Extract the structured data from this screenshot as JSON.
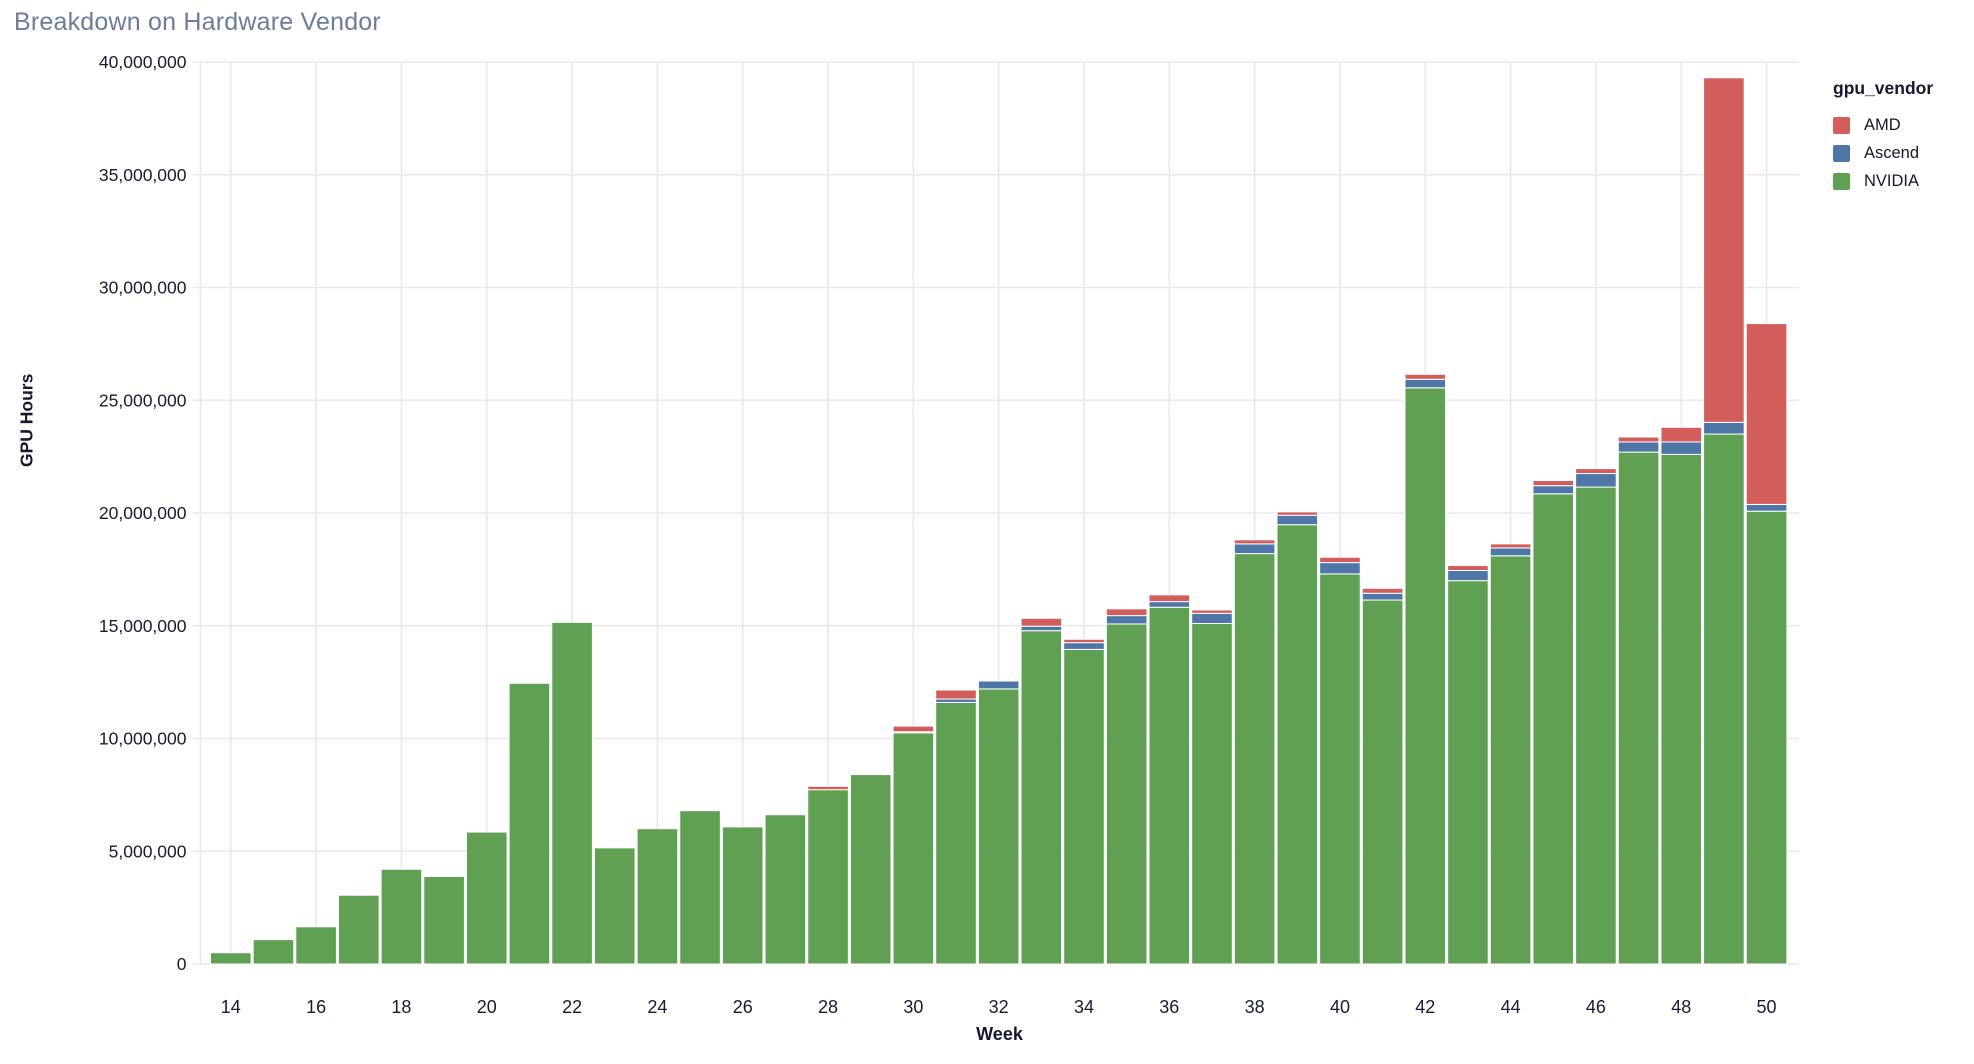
{
  "title": "Breakdown on Hardware Vendor",
  "legend": {
    "title": "gpu_vendor",
    "items": [
      {
        "label": "AMD",
        "color": "#d25d5a"
      },
      {
        "label": "Ascend",
        "color": "#4e77a7"
      },
      {
        "label": "NVIDIA",
        "color": "#5fa053"
      }
    ]
  },
  "colors": {
    "amd": "#d25d5a",
    "ascend": "#4e77a7",
    "nvidia": "#5fa053",
    "grid": "#e7e9f1",
    "axis_text": "#181b33",
    "title_text": "#6e7b98",
    "background": "#ffffff"
  },
  "chart_data": {
    "type": "bar",
    "stacked": true,
    "title": "Breakdown on Hardware Vendor",
    "xlabel": "Week",
    "ylabel": "GPU Hours",
    "x": [
      14,
      15,
      16,
      17,
      18,
      19,
      20,
      21,
      22,
      23,
      24,
      25,
      26,
      27,
      28,
      29,
      30,
      31,
      32,
      33,
      34,
      35,
      36,
      37,
      38,
      39,
      40,
      41,
      42,
      43,
      44,
      45,
      46,
      47,
      48,
      49,
      50
    ],
    "xticks": [
      14,
      16,
      18,
      20,
      22,
      24,
      26,
      28,
      30,
      32,
      34,
      36,
      38,
      40,
      42,
      44,
      46,
      48,
      50
    ],
    "xtick_labels": [
      "14",
      "16",
      "18",
      "20",
      "22",
      "24",
      "26",
      "28",
      "30",
      "32",
      "34",
      "36",
      "38",
      "40",
      "42",
      "44",
      "46",
      "48",
      "50"
    ],
    "ylim": [
      0,
      40000000
    ],
    "yticks": [
      0,
      5000000,
      10000000,
      15000000,
      20000000,
      25000000,
      30000000,
      35000000,
      40000000
    ],
    "ytick_labels": [
      "0",
      "5,000,000",
      "10,000,000",
      "15,000,000",
      "20,000,000",
      "25,000,000",
      "30,000,000",
      "35,000,000",
      "40,000,000"
    ],
    "grid": true,
    "legend_position": "right",
    "stack_order_bottom_to_top": [
      "NVIDIA",
      "Ascend",
      "AMD"
    ],
    "series": [
      {
        "name": "NVIDIA",
        "color": "#5fa053",
        "values": [
          500000,
          1080000,
          1650000,
          3050000,
          4200000,
          3880000,
          5850000,
          12450000,
          15150000,
          5150000,
          6000000,
          6800000,
          6080000,
          6620000,
          7730000,
          8400000,
          10250000,
          11600000,
          12200000,
          14780000,
          13950000,
          15080000,
          15820000,
          15100000,
          18200000,
          19480000,
          17300000,
          16140000,
          25550000,
          17000000,
          18100000,
          20850000,
          21150000,
          22700000,
          22600000,
          23500000,
          20080000
        ]
      },
      {
        "name": "Ascend",
        "color": "#4e77a7",
        "values": [
          0,
          0,
          0,
          0,
          0,
          0,
          0,
          0,
          0,
          0,
          0,
          0,
          0,
          0,
          0,
          0,
          50000,
          150000,
          350000,
          200000,
          300000,
          370000,
          250000,
          450000,
          430000,
          420000,
          500000,
          300000,
          380000,
          450000,
          350000,
          360000,
          600000,
          450000,
          550000,
          520000,
          300000
        ]
      },
      {
        "name": "AMD",
        "color": "#d25d5a",
        "values": [
          0,
          0,
          0,
          0,
          0,
          0,
          0,
          0,
          0,
          0,
          0,
          0,
          0,
          0,
          150000,
          0,
          250000,
          400000,
          0,
          350000,
          150000,
          300000,
          300000,
          150000,
          180000,
          150000,
          240000,
          220000,
          220000,
          220000,
          180000,
          230000,
          220000,
          220000,
          650000,
          15280000,
          8020000
        ]
      }
    ]
  }
}
